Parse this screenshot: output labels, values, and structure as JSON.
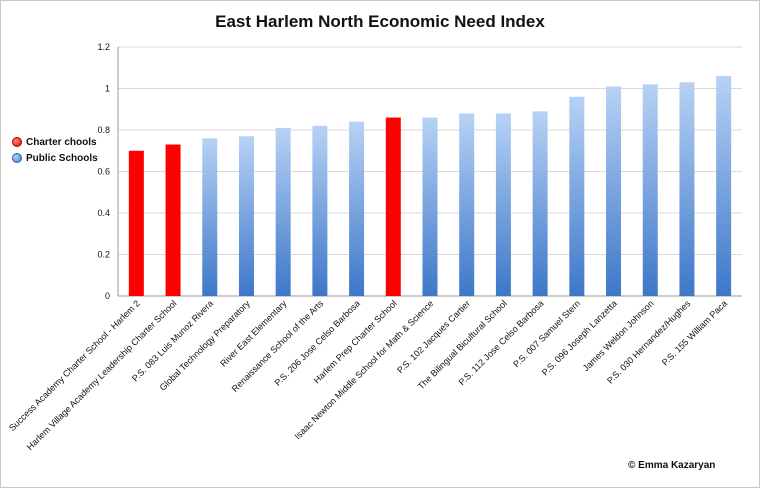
{
  "chart_data": {
    "type": "bar",
    "title": "East Harlem North Economic Need Index",
    "ylim": [
      0,
      1.2
    ],
    "yticks": [
      "0",
      "0.2",
      "0.4",
      "0.6",
      "0.8",
      "1",
      "1.2"
    ],
    "categories": [
      "Success Academy Charter School - Harlem 2",
      "Harlem Village Academy Leadership Charter School",
      "P.S. 083 Luis Munoz Rivera",
      "Global Technology Preparatory",
      "River East Elementary",
      "Renaissance School of the Arts",
      "P.S. 206 Jose Celso Barbosa",
      "Harlem Prep Charter School",
      "Isaac Newton Middle School for Math & Science",
      "P.S. 102 Jacques Cartier",
      "The Bilingual Bicultural School",
      "P.S. 112 Jose Celso Barbosa",
      "P.S. 007 Samuel Stern",
      "P.S. 096 Joseph Lanzetta",
      "James Weldon Johnson",
      "P.S. 030 Hernandez/Hughes",
      "P.S. 155 William Paca"
    ],
    "values": [
      0.7,
      0.73,
      0.76,
      0.77,
      0.81,
      0.82,
      0.84,
      0.86,
      0.86,
      0.88,
      0.88,
      0.89,
      0.96,
      1.01,
      1.02,
      1.03,
      1.06
    ],
    "groups": [
      "charter",
      "charter",
      "public",
      "public",
      "public",
      "public",
      "public",
      "charter",
      "public",
      "public",
      "public",
      "public",
      "public",
      "public",
      "public",
      "public",
      "public"
    ],
    "legend": [
      {
        "key": "charter",
        "label": "Charter chools",
        "color": "#ff0000"
      },
      {
        "key": "public",
        "label": "Public Schools",
        "color": "#5b8fd9"
      }
    ],
    "legend_position": "left",
    "grid": true
  },
  "credit": "© Emma Kazaryan"
}
